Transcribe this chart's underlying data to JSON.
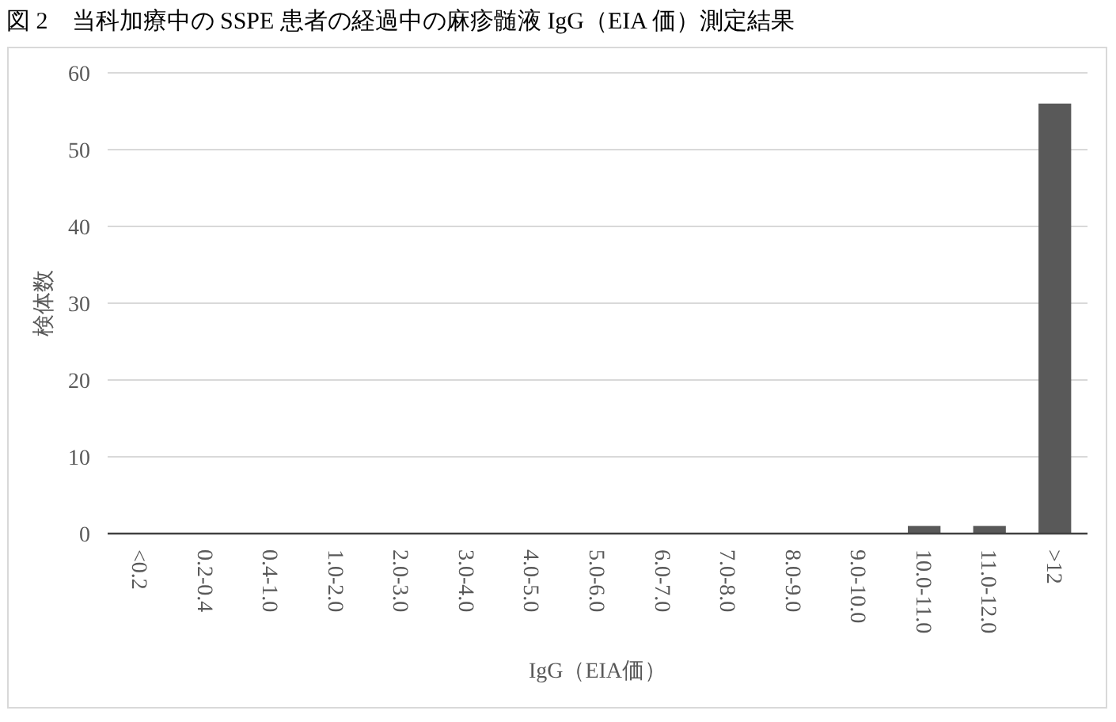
{
  "chart_data": {
    "type": "bar",
    "title": "図 2　当科加療中の SSPE 患者の経過中の麻疹髄液 IgG（EIA 価）測定結果",
    "xlabel": "IgG（EIA価）",
    "ylabel": "検体数",
    "categories": [
      "<0.2",
      "0.2-0.4",
      "0.4-1.0",
      "1.0-2.0",
      "2.0-3.0",
      "3.0-4.0",
      "4.0-5.0",
      "5.0-6.0",
      "6.0-7.0",
      "7.0-8.0",
      "8.0-9.0",
      "9.0-10.0",
      "10.0-11.0",
      "11.0-12.0",
      ">12"
    ],
    "values": [
      0,
      0,
      0,
      0,
      0,
      0,
      0,
      0,
      0,
      0,
      0,
      0,
      1,
      1,
      56
    ],
    "color": "#595959",
    "ylim": [
      0,
      60
    ],
    "yticks": [
      0,
      10,
      20,
      30,
      40,
      50,
      60
    ],
    "grid": "y"
  }
}
